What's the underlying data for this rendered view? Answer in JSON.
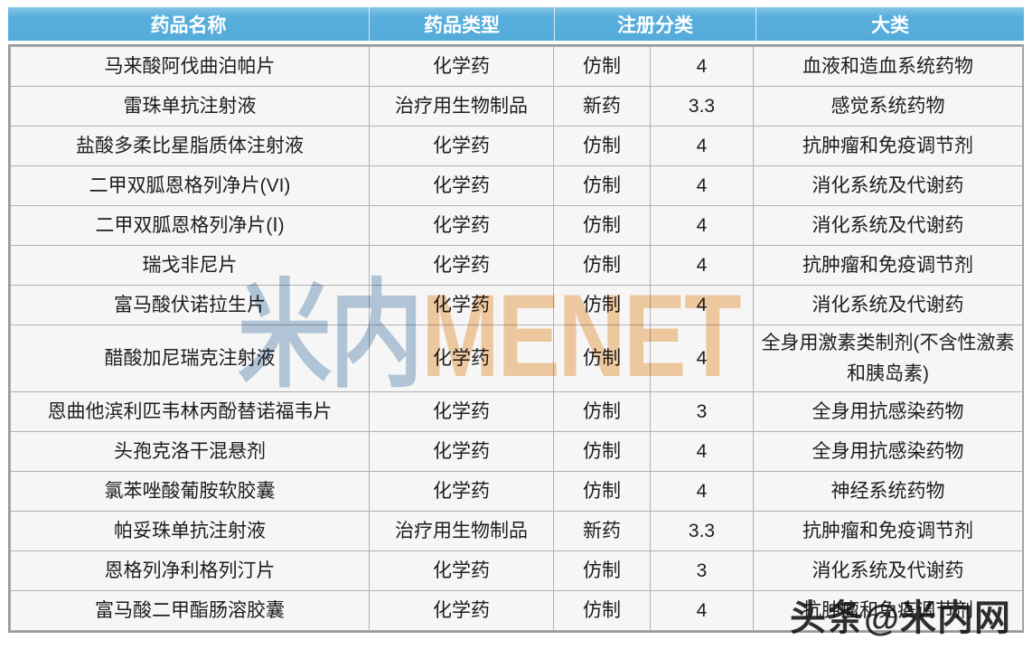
{
  "table": {
    "headers": [
      "药品名称",
      "药品类型",
      "注册分类",
      "大类"
    ],
    "rows": [
      {
        "name": "马来酸阿伐曲泊帕片",
        "type": "化学药",
        "reg": "仿制",
        "reg_class": "4",
        "category": "血液和造血系统药物"
      },
      {
        "name": "雷珠单抗注射液",
        "type": "治疗用生物制品",
        "reg": "新药",
        "reg_class": "3.3",
        "category": "感觉系统药物"
      },
      {
        "name": "盐酸多柔比星脂质体注射液",
        "type": "化学药",
        "reg": "仿制",
        "reg_class": "4",
        "category": "抗肿瘤和免疫调节剂"
      },
      {
        "name": "二甲双胍恩格列净片(VI)",
        "type": "化学药",
        "reg": "仿制",
        "reg_class": "4",
        "category": "消化系统及代谢药"
      },
      {
        "name": "二甲双胍恩格列净片(Ⅰ)",
        "type": "化学药",
        "reg": "仿制",
        "reg_class": "4",
        "category": "消化系统及代谢药"
      },
      {
        "name": "瑞戈非尼片",
        "type": "化学药",
        "reg": "仿制",
        "reg_class": "4",
        "category": "抗肿瘤和免疫调节剂"
      },
      {
        "name": "富马酸伏诺拉生片",
        "type": "化学药",
        "reg": "仿制",
        "reg_class": "4",
        "category": "消化系统及代谢药"
      },
      {
        "name": "醋酸加尼瑞克注射液",
        "type": "化学药",
        "reg": "仿制",
        "reg_class": "4",
        "category": "全身用激素类制剂(不含性激素和胰岛素)"
      },
      {
        "name": "恩曲他滨利匹韦林丙酚替诺福韦片",
        "type": "化学药",
        "reg": "仿制",
        "reg_class": "3",
        "category": "全身用抗感染药物"
      },
      {
        "name": "头孢克洛干混悬剂",
        "type": "化学药",
        "reg": "仿制",
        "reg_class": "4",
        "category": "全身用抗感染药物"
      },
      {
        "name": "氯苯唑酸葡胺软胶囊",
        "type": "化学药",
        "reg": "仿制",
        "reg_class": "4",
        "category": "神经系统药物"
      },
      {
        "name": "帕妥珠单抗注射液",
        "type": "治疗用生物制品",
        "reg": "新药",
        "reg_class": "3.3",
        "category": "抗肿瘤和免疫调节剂"
      },
      {
        "name": "恩格列净利格列汀片",
        "type": "化学药",
        "reg": "仿制",
        "reg_class": "3",
        "category": "消化系统及代谢药"
      },
      {
        "name": "富马酸二甲酯肠溶胶囊",
        "type": "化学药",
        "reg": "仿制",
        "reg_class": "4",
        "category": "抗肿瘤和免疫调节剂"
      }
    ]
  },
  "watermarks": {
    "center_cn": "米内",
    "center_en": "MENET",
    "bottom_right": "头条@米内网"
  },
  "colors": {
    "header_bg": "#56AEDC",
    "header_text": "#FFFFFF",
    "row_bg": "#F6F6F7",
    "grid_line": "#B1B1B3",
    "outer_border": "#96989B",
    "body_text": "#1D1D1F",
    "watermark_cn": "#B7CBDC",
    "watermark_en": "#F6D0A4"
  }
}
